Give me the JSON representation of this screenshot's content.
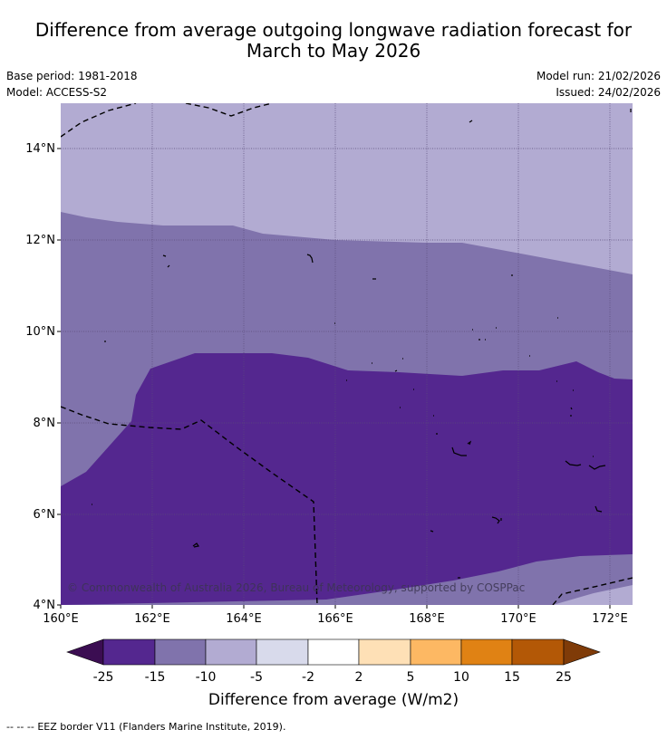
{
  "header": {
    "title_line1": "Difference from average outgoing longwave radiation forecast for",
    "title_line2": "March to May 2026",
    "base_period": "Base period: 1981-2018",
    "model": "Model: ACCESS-S2",
    "model_run": "Model run: 21/02/2026",
    "issued": "Issued: 24/02/2026"
  },
  "map": {
    "lat_labels": [
      "14°N",
      "12°N",
      "10°N",
      "8°N",
      "6°N",
      "4°N"
    ],
    "lon_labels": [
      "160°E",
      "162°E",
      "164°E",
      "166°E",
      "168°E",
      "170°E",
      "172°E"
    ],
    "copyright": "© Commonwealth of Australia 2026, Bureau of Meteorology, supported by COSPPac",
    "category_colors": {
      "lt_minus25": "#3b0d52",
      "minus25_to_minus15": "#54278f",
      "minus15_to_minus10": "#8073ac",
      "minus10_to_minus5": "#b2abd2",
      "minus5_to_minus2": "#d8daeb",
      "minus2_to_2": "#ffffff",
      "2_to_5": "#fee0b6",
      "5_to_10": "#fdb863",
      "10_to_15": "#e08214",
      "15_to_25": "#b35806",
      "gt_25": "#7f3b08"
    }
  },
  "colorbar": {
    "tick_labels": [
      "-25",
      "-15",
      "-10",
      "-5",
      "-2",
      "2",
      "5",
      "10",
      "15",
      "25"
    ],
    "label": "Difference from average (W/m2)"
  },
  "legend": {
    "eez_symbol": "-- -- --",
    "eez_text": "EEZ border V11 (Flanders Marine Institute, 2019)."
  }
}
